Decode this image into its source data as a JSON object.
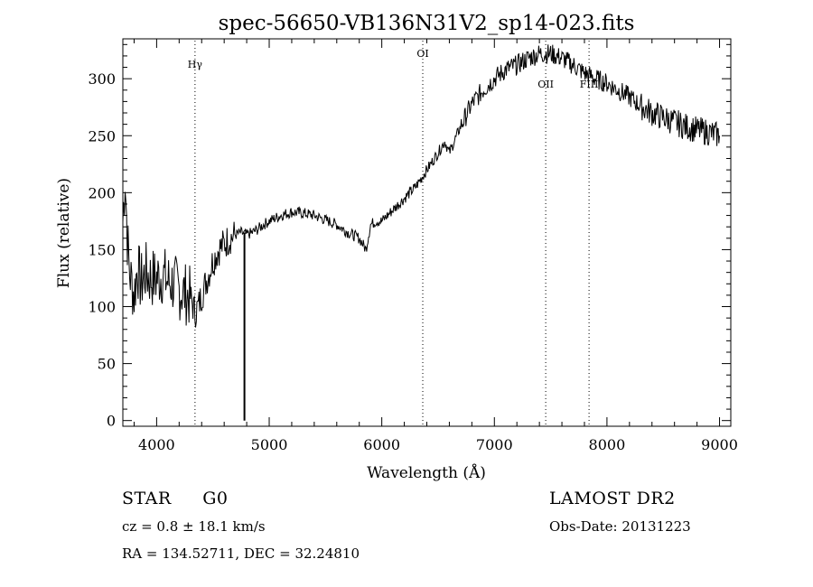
{
  "chart_data": {
    "type": "line",
    "title": "spec-56650-VB136N31V2_sp14-023.fits",
    "xlabel": "Wavelength (Å)",
    "ylabel": "Flux (relative)",
    "xlim": [
      3700,
      9100
    ],
    "ylim": [
      -5,
      335
    ],
    "xticks": [
      4000,
      5000,
      6000,
      7000,
      8000,
      9000
    ],
    "yticks": [
      0,
      50,
      100,
      150,
      200,
      250,
      300
    ],
    "grid": false,
    "series": [
      {
        "x": [
          3700,
          3720,
          3740,
          3760,
          3780,
          3800,
          3830,
          3860,
          3900,
          3950,
          4000,
          4050,
          4100,
          4150,
          4200,
          4250,
          4300,
          4340,
          4370,
          4400,
          4450,
          4500,
          4550,
          4600,
          4650,
          4700,
          4750,
          4800,
          4850,
          4900,
          4950,
          5000,
          5100,
          5200,
          5300,
          5400,
          5500,
          5600,
          5700,
          5800,
          5860,
          5900,
          5950,
          6000,
          6100,
          6200,
          6300,
          6400,
          6500,
          6560,
          6600,
          6700,
          6800,
          6900,
          7000,
          7100,
          7200,
          7300,
          7400,
          7500,
          7600,
          7700,
          7800,
          7900,
          8000,
          8100,
          8200,
          8300,
          8400,
          8500,
          8600,
          8700,
          8800,
          8900,
          9000
        ],
        "y": [
          175,
          215,
          160,
          130,
          120,
          110,
          135,
          120,
          130,
          125,
          125,
          128,
          122,
          120,
          115,
          112,
          108,
          95,
          100,
          110,
          125,
          140,
          150,
          155,
          160,
          163,
          165,
          163,
          165,
          168,
          172,
          175,
          180,
          183,
          182,
          180,
          176,
          172,
          165,
          160,
          150,
          172,
          175,
          175,
          185,
          195,
          205,
          220,
          235,
          245,
          235,
          258,
          278,
          290,
          300,
          308,
          312,
          318,
          322,
          322,
          318,
          312,
          305,
          300,
          296,
          290,
          284,
          276,
          270,
          266,
          262,
          258,
          255,
          253,
          250
        ]
      }
    ],
    "lines": [
      {
        "label": "Hγ",
        "x": 4341
      },
      {
        "label": "OI",
        "x": 6364
      },
      {
        "label": "OII",
        "x": 7456
      },
      {
        "label": "FIII",
        "x": 7841
      }
    ],
    "spike": {
      "x": 4780,
      "y": 0
    }
  },
  "info": {
    "class_type": "STAR",
    "subclass": "G0",
    "survey": "LAMOST DR2",
    "cz": "cz = 0.8 ± 18.1 km/s",
    "obs_date": "Obs-Date: 20131223",
    "coords": "RA = 134.52711, DEC =  32.24810"
  }
}
